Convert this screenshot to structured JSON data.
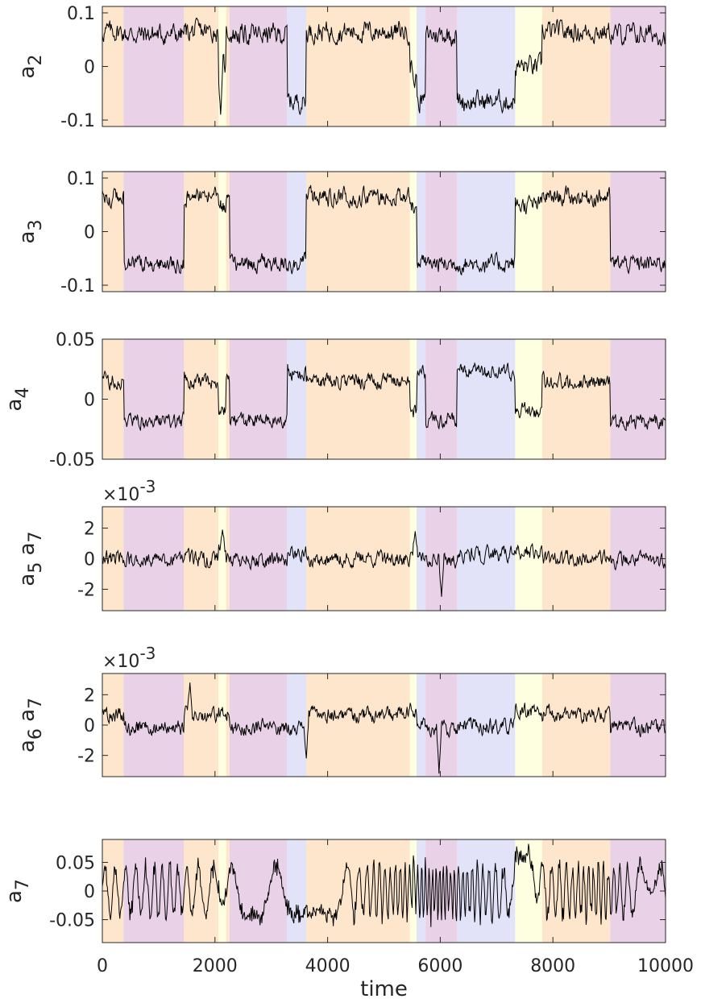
{
  "chart_data": {
    "type": "line",
    "xlabel": "time",
    "xlim": [
      0,
      10000
    ],
    "xticks": [
      0,
      2000,
      4000,
      6000,
      8000,
      10000
    ],
    "xtick_labels": [
      "0",
      "2000",
      "4000",
      "6000",
      "8000",
      "10000"
    ],
    "state_colors": {
      "orange": "#fde6cc",
      "purple": "#e9d1e7",
      "blue": "#e2e2f8",
      "yellow": "#fefee0"
    },
    "line_color": "#000000",
    "segments": [
      {
        "start": 0,
        "end": 380,
        "state": "orange"
      },
      {
        "start": 380,
        "end": 1450,
        "state": "purple"
      },
      {
        "start": 1450,
        "end": 2060,
        "state": "orange"
      },
      {
        "start": 2060,
        "end": 2200,
        "state": "yellow"
      },
      {
        "start": 2200,
        "end": 2260,
        "state": "orange"
      },
      {
        "start": 2260,
        "end": 3280,
        "state": "purple"
      },
      {
        "start": 3280,
        "end": 3620,
        "state": "blue"
      },
      {
        "start": 3620,
        "end": 5460,
        "state": "orange"
      },
      {
        "start": 5460,
        "end": 5580,
        "state": "yellow"
      },
      {
        "start": 5580,
        "end": 5740,
        "state": "blue"
      },
      {
        "start": 5740,
        "end": 6300,
        "state": "purple"
      },
      {
        "start": 6300,
        "end": 7330,
        "state": "blue"
      },
      {
        "start": 7330,
        "end": 7810,
        "state": "yellow"
      },
      {
        "start": 7810,
        "end": 9020,
        "state": "orange"
      },
      {
        "start": 9020,
        "end": 10000,
        "state": "purple"
      }
    ],
    "panels": [
      {
        "ylabel_main": "a",
        "ylabel_sub": "2",
        "ylabel_main2": "",
        "ylabel_sub2": "",
        "ylim": [
          -0.112,
          0.112
        ],
        "yticks": [
          -0.1,
          0,
          0.1
        ],
        "ytick_labels": [
          "-0.1",
          "0",
          "0.1"
        ],
        "exponent_label": "",
        "levels": {
          "orange": 0.065,
          "purple": 0.06,
          "blue": -0.065,
          "yellow": 0.0
        },
        "noise": 0.015,
        "spikes": [
          {
            "x": 2100,
            "y": -0.09
          },
          {
            "x": 5540,
            "y": -0.04
          }
        ]
      },
      {
        "ylabel_main": "a",
        "ylabel_sub": "3",
        "ylabel_main2": "",
        "ylabel_sub2": "",
        "ylim": [
          -0.112,
          0.112
        ],
        "yticks": [
          -0.1,
          0,
          0.1
        ],
        "ytick_labels": [
          "-0.1",
          "0",
          "0.1"
        ],
        "exponent_label": "",
        "levels": {
          "orange": 0.065,
          "purple": -0.06,
          "blue": -0.06,
          "yellow": 0.05
        },
        "noise": 0.013,
        "spikes": []
      },
      {
        "ylabel_main": "a",
        "ylabel_sub": "4",
        "ylabel_main2": "",
        "ylabel_sub2": "",
        "ylim": [
          -0.05,
          0.05
        ],
        "yticks": [
          -0.05,
          0,
          0.05
        ],
        "ytick_labels": [
          "-0.05",
          "0",
          "0.05"
        ],
        "exponent_label": "",
        "levels": {
          "orange": 0.015,
          "purple": -0.018,
          "blue": 0.022,
          "yellow": -0.01
        },
        "noise": 0.005,
        "spikes": []
      },
      {
        "ylabel_main": "a",
        "ylabel_sub": "5",
        "ylabel_main2": "a",
        "ylabel_sub2": "7",
        "ylim": [
          -0.0034,
          0.0034
        ],
        "yticks": [
          -0.002,
          0,
          0.002
        ],
        "ytick_labels": [
          "-2",
          "0",
          "2"
        ],
        "exponent_label": "×10",
        "exponent_sup": "-3",
        "levels": {
          "orange": 0.0,
          "purple": -0.0001,
          "blue": 0.0003,
          "yellow": 0.0005
        },
        "noise": 0.0004,
        "spikes": [
          {
            "x": 2130,
            "y": 0.0019
          },
          {
            "x": 5560,
            "y": 0.0018
          },
          {
            "x": 6020,
            "y": -0.0025
          }
        ]
      },
      {
        "ylabel_main": "a",
        "ylabel_sub": "6",
        "ylabel_main2": "a",
        "ylabel_sub2": "7",
        "ylim": [
          -0.0034,
          0.0034
        ],
        "yticks": [
          -0.002,
          0,
          0.002
        ],
        "ytick_labels": [
          "-2",
          "0",
          "2"
        ],
        "exponent_label": "×10",
        "exponent_sup": "-3",
        "levels": {
          "orange": 0.0007,
          "purple": -0.0002,
          "blue": -0.0001,
          "yellow": 0.0009
        },
        "noise": 0.0004,
        "spikes": [
          {
            "x": 1550,
            "y": 0.0028
          },
          {
            "x": 3620,
            "y": -0.0022
          },
          {
            "x": 5980,
            "y": -0.0032
          }
        ]
      },
      {
        "ylabel_main": "a",
        "ylabel_sub": "7",
        "ylabel_main2": "",
        "ylabel_sub2": "",
        "ylim": [
          -0.09,
          0.09
        ],
        "yticks": [
          -0.05,
          0,
          0.05
        ],
        "ytick_labels": [
          "-0.05",
          "0",
          "0.05"
        ],
        "exponent_label": "",
        "levels": {
          "orange": 0.0,
          "purple": 0.0,
          "blue": 0.0,
          "yellow": 0.02
        },
        "noise": 0.055,
        "oscillatory": true,
        "spikes": []
      }
    ]
  }
}
